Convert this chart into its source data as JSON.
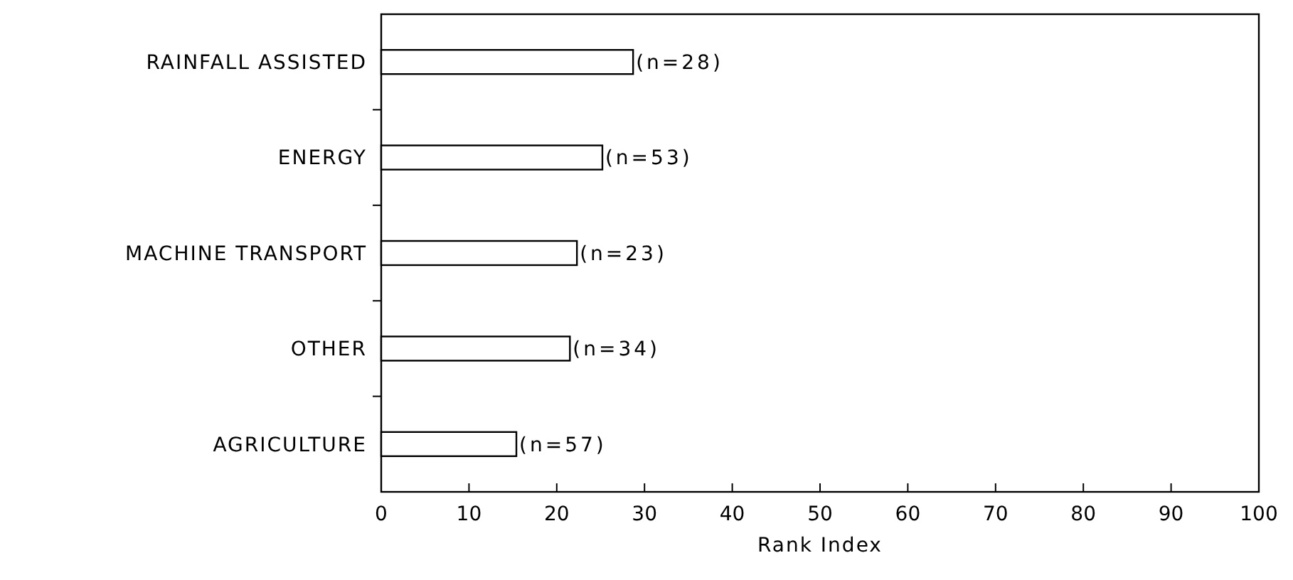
{
  "chart_data": {
    "type": "bar",
    "orientation": "horizontal",
    "xlabel": "Rank Index",
    "categories": [
      "RAINFALL ASSISTED",
      "ENERGY",
      "MACHINE TRANSPORT",
      "OTHER",
      "AGRICULTURE"
    ],
    "values": [
      28.7,
      25.2,
      22.3,
      21.5,
      15.4
    ],
    "color": "#ffffff",
    "xlim": [
      0,
      100
    ],
    "xticks": [
      0,
      10,
      20,
      30,
      40,
      50,
      60,
      70,
      80,
      90,
      100
    ],
    "grid": false,
    "annotations": [
      {
        "text": "(n=28)",
        "x": 28.7,
        "y": "RAINFALL ASSISTED"
      },
      {
        "text": "(n=53)",
        "x": 25.2,
        "y": "ENERGY"
      },
      {
        "text": "(n=23)",
        "x": 22.3,
        "y": "MACHINE TRANSPORT"
      },
      {
        "text": "(n=34)",
        "x": 21.5,
        "y": "OTHER"
      },
      {
        "text": "(n=57)",
        "x": 15.4,
        "y": "AGRICULTURE"
      }
    ]
  }
}
